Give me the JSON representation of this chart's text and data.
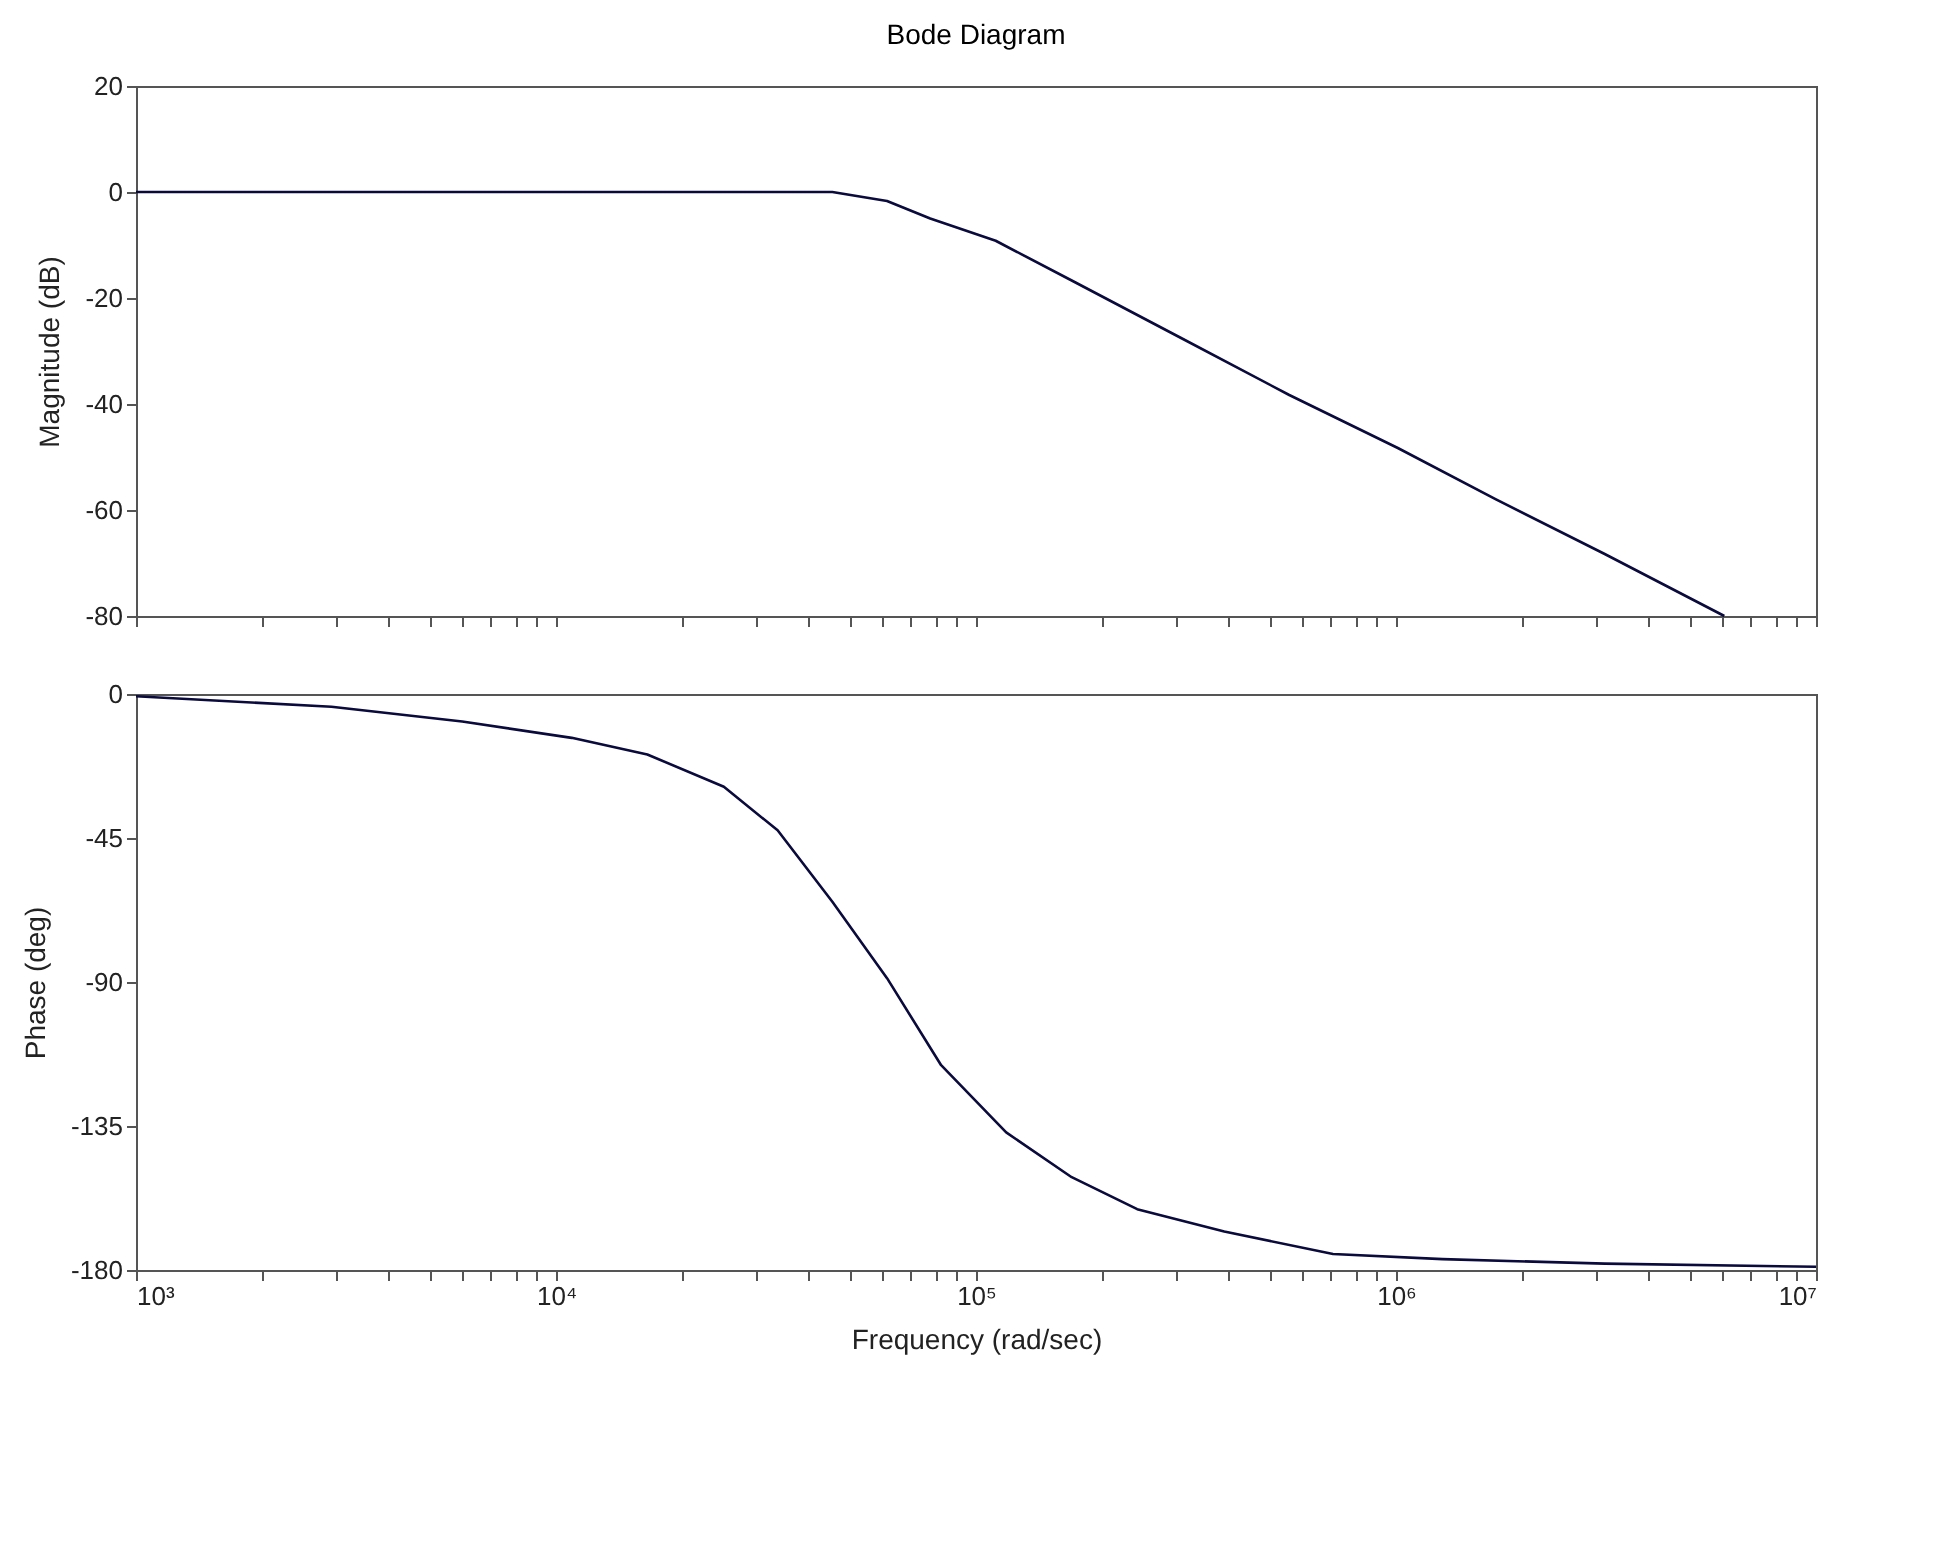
{
  "chart_data": [
    {
      "type": "line",
      "title": "Bode Diagram",
      "ylabel": "Magnitude (dB)",
      "log": "x",
      "grid": false,
      "tick_labels": "y",
      "xlim": [
        1000,
        10000000
      ],
      "ylim": [
        -80,
        20
      ],
      "yticks": [
        -80,
        -60,
        -40,
        -20,
        0,
        20
      ],
      "xticks": [
        {
          "value": 1000,
          "label": null
        },
        {
          "value": 2000,
          "label": null
        },
        {
          "value": 3000,
          "label": null
        },
        {
          "value": 4000,
          "label": null
        },
        {
          "value": 5000,
          "label": null
        },
        {
          "value": 6000,
          "label": null
        },
        {
          "value": 7000,
          "label": null
        },
        {
          "value": 8000,
          "label": null
        },
        {
          "value": 9000,
          "label": null
        },
        {
          "value": 10000,
          "label": null
        },
        {
          "value": 20000,
          "label": null
        },
        {
          "value": 30000,
          "label": null
        },
        {
          "value": 40000,
          "label": null
        },
        {
          "value": 50000,
          "label": null
        },
        {
          "value": 60000,
          "label": null
        },
        {
          "value": 70000,
          "label": null
        },
        {
          "value": 80000,
          "label": null
        },
        {
          "value": 90000,
          "label": null
        },
        {
          "value": 100000,
          "label": null
        },
        {
          "value": 200000,
          "label": null
        },
        {
          "value": 300000,
          "label": null
        },
        {
          "value": 400000,
          "label": null
        },
        {
          "value": 500000,
          "label": null
        },
        {
          "value": 600000,
          "label": null
        },
        {
          "value": 700000,
          "label": null
        },
        {
          "value": 800000,
          "label": null
        },
        {
          "value": 900000,
          "label": null
        },
        {
          "value": 1000000,
          "label": null
        },
        {
          "value": 2000000,
          "label": null
        },
        {
          "value": 3000000,
          "label": null
        },
        {
          "value": 4000000,
          "label": null
        },
        {
          "value": 5000000,
          "label": null
        },
        {
          "value": 6000000,
          "label": null
        },
        {
          "value": 7000000,
          "label": null
        },
        {
          "value": 8000000,
          "label": null
        },
        {
          "value": 9000000,
          "label": null
        },
        {
          "value": 10000000,
          "label": null
        }
      ],
      "series": [
        {
          "color": "#0a0a3c",
          "line_style": "solid",
          "x": [
            1000,
            10000,
            30000,
            45500,
            61400,
            77800,
            111400,
            169000,
            307000,
            557000,
            1010000,
            1730000,
            3140000,
            6050000
          ],
          "values": [
            0,
            0,
            0,
            0,
            -1.7,
            -5,
            -9.2,
            -16.7,
            -27.5,
            -38.3,
            -48.3,
            -58,
            -68.3,
            -80
          ]
        }
      ]
    },
    {
      "type": "line",
      "xlabel": "Frequency  (rad/sec)",
      "ylabel": "Phase (deg)",
      "log": "x",
      "grid": false,
      "xlim": [
        1000,
        10000000
      ],
      "ylim": [
        -180,
        0
      ],
      "yticks": [
        -180,
        -135,
        -90,
        -45,
        0
      ],
      "xticks": [
        {
          "value": 1000,
          "label": "10³"
        },
        {
          "value": 2000,
          "label": null
        },
        {
          "value": 3000,
          "label": null
        },
        {
          "value": 4000,
          "label": null
        },
        {
          "value": 5000,
          "label": null
        },
        {
          "value": 6000,
          "label": null
        },
        {
          "value": 7000,
          "label": null
        },
        {
          "value": 8000,
          "label": null
        },
        {
          "value": 9000,
          "label": null
        },
        {
          "value": 10000,
          "label": "10⁴"
        },
        {
          "value": 20000,
          "label": null
        },
        {
          "value": 30000,
          "label": null
        },
        {
          "value": 40000,
          "label": null
        },
        {
          "value": 50000,
          "label": null
        },
        {
          "value": 60000,
          "label": null
        },
        {
          "value": 70000,
          "label": null
        },
        {
          "value": 80000,
          "label": null
        },
        {
          "value": 90000,
          "label": null
        },
        {
          "value": 100000,
          "label": "10⁵"
        },
        {
          "value": 200000,
          "label": null
        },
        {
          "value": 300000,
          "label": null
        },
        {
          "value": 400000,
          "label": null
        },
        {
          "value": 500000,
          "label": null
        },
        {
          "value": 600000,
          "label": null
        },
        {
          "value": 700000,
          "label": null
        },
        {
          "value": 800000,
          "label": null
        },
        {
          "value": 900000,
          "label": null
        },
        {
          "value": 1000000,
          "label": "10⁶"
        },
        {
          "value": 2000000,
          "label": null
        },
        {
          "value": 3000000,
          "label": null
        },
        {
          "value": 4000000,
          "label": null
        },
        {
          "value": 5000000,
          "label": null
        },
        {
          "value": 6000000,
          "label": null
        },
        {
          "value": 7000000,
          "label": null
        },
        {
          "value": 8000000,
          "label": null
        },
        {
          "value": 9000000,
          "label": null
        },
        {
          "value": 10000000,
          "label": "10⁷"
        }
      ],
      "series": [
        {
          "color": "#0a0a3c",
          "line_style": "solid",
          "x": [
            1000,
            2920,
            5980,
            10900,
            16500,
            25100,
            33700,
            45500,
            61400,
            82600,
            118000,
            169000,
            242000,
            390000,
            708000,
            1290000,
            3140000,
            10000000
          ],
          "values": [
            -0.7,
            -4,
            -8.6,
            -13.7,
            -18.9,
            -29,
            -42.6,
            -64.9,
            -88.8,
            -116,
            -137,
            -151,
            -161,
            -168,
            -175,
            -176.6,
            -178,
            -179
          ]
        }
      ]
    }
  ]
}
